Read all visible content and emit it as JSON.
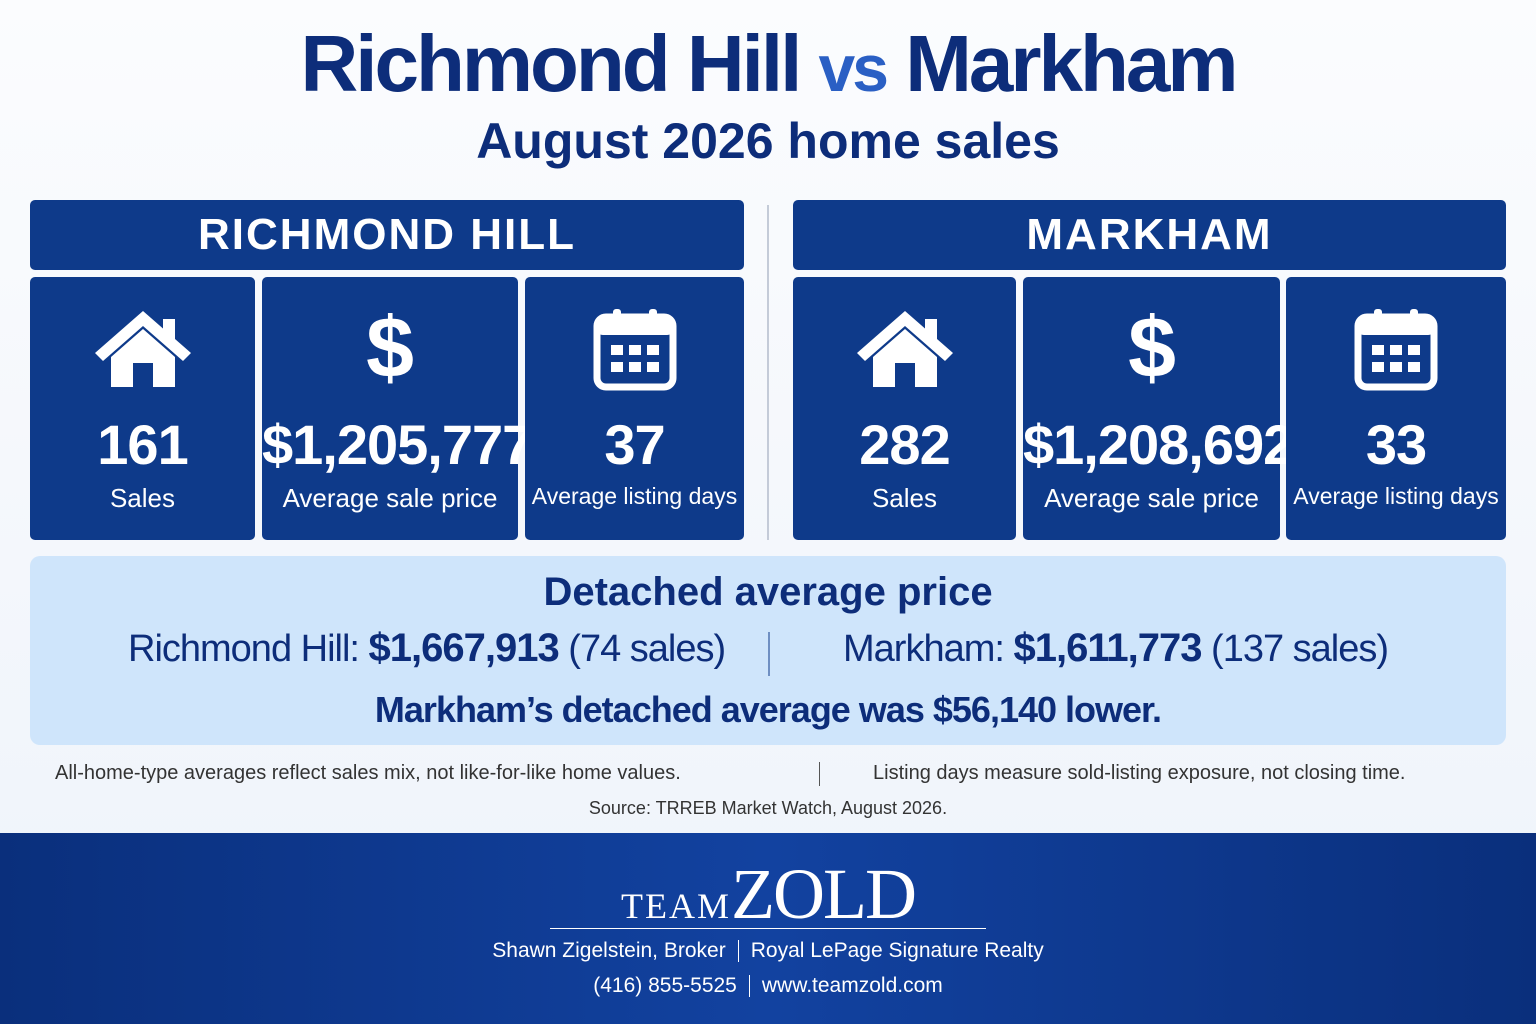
{
  "header": {
    "title_left": "Richmond Hill",
    "title_vs": "vs",
    "title_right": "Markham",
    "subtitle": "August 2026 home sales"
  },
  "panels": [
    {
      "name": "RICHMOND HILL",
      "stats": [
        {
          "value": "161",
          "label": "Sales"
        },
        {
          "value": "$1,205,777",
          "label": "Average sale price"
        },
        {
          "value": "37",
          "label": "Average listing days"
        }
      ]
    },
    {
      "name": "MARKHAM",
      "stats": [
        {
          "value": "282",
          "label": "Sales"
        },
        {
          "value": "$1,208,692",
          "label": "Average sale price"
        },
        {
          "value": "33",
          "label": "Average listing days"
        }
      ]
    }
  ],
  "detached": {
    "heading": "Detached average price",
    "rows": [
      {
        "label": "Richmond Hill:",
        "price": "$1,667,913",
        "sales": "(74 sales)"
      },
      {
        "label": "Markham:",
        "price": "$1,611,773",
        "sales": "(137 sales)"
      }
    ],
    "note": "Markham’s detached average was $56,140 lower."
  },
  "notes": [
    "All-home-type averages reflect sales mix, not like-for-like home values.",
    "Listing days measure sold-listing exposure, not closing time."
  ],
  "source": "Source: TRREB Market Watch, August 2026.",
  "footer": {
    "logo_small": "TEAM",
    "logo_big": "ZOLD",
    "line1": [
      "Shawn Zigelstein, Broker",
      "Royal LePage Signature Realty"
    ],
    "line2": [
      "(416) 855-5525",
      "www.teamzold.com"
    ]
  }
}
